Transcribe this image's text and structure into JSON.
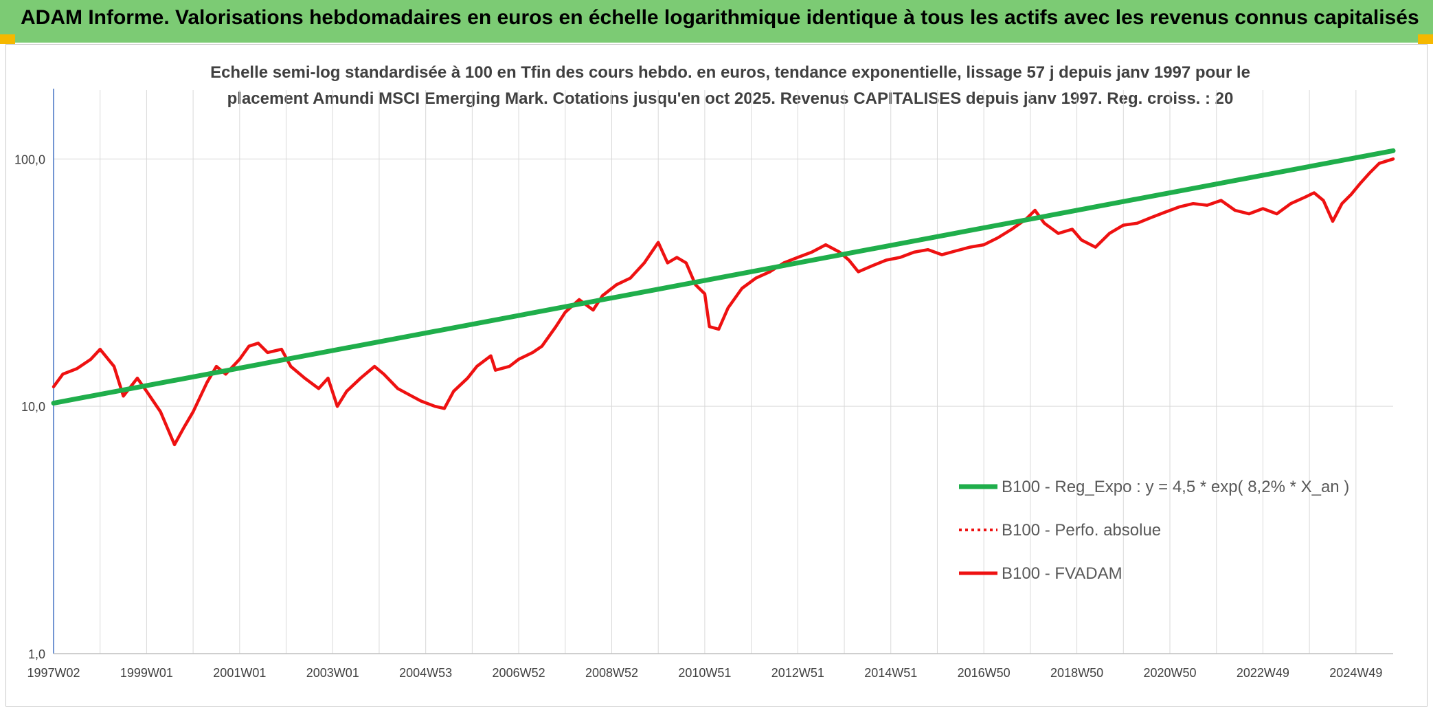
{
  "banner": {
    "title": "ADAM Informe. Valorisations hebdomadaires en euros en échelle logarithmique identique à tous les actifs avec les revenus connus capitalisés"
  },
  "colors": {
    "banner_bg": "#7ccb74",
    "corner_marks": "#f5b800",
    "regression": "#1fae4b",
    "series": "#ee1111",
    "grid": "#d9d9d9",
    "axis": "#4472c4",
    "text": "#404040"
  },
  "chart_data": {
    "type": "line",
    "title_lines": [
      "Echelle semi-log standardisée à 100 en Tfin des cours hebdo. en euros, tendance exponentielle, lissage 57 j depuis janv 1997 pour le",
      "placement Amundi MSCI Emerging Mark. Cotations jusqu'en oct 2025. Revenus CAPITALISES depuis janv 1997. Reg. croiss. : 20"
    ],
    "y_scale": "log",
    "ylim": [
      1,
      190
    ],
    "y_ticks": [
      {
        "value": 1,
        "label": "1,0"
      },
      {
        "value": 10,
        "label": "10,0"
      },
      {
        "value": 100,
        "label": "100,0"
      }
    ],
    "xlim": [
      1997.0,
      2025.8
    ],
    "x_ticks": [
      {
        "value": 1997.0,
        "label": "1997W02"
      },
      {
        "value": 1999.0,
        "label": "1999W01"
      },
      {
        "value": 2001.0,
        "label": "2001W01"
      },
      {
        "value": 2003.0,
        "label": "2003W01"
      },
      {
        "value": 2005.0,
        "label": "2004W53"
      },
      {
        "value": 2007.0,
        "label": "2006W52"
      },
      {
        "value": 2009.0,
        "label": "2008W52"
      },
      {
        "value": 2011.0,
        "label": "2010W51"
      },
      {
        "value": 2013.0,
        "label": "2012W51"
      },
      {
        "value": 2015.0,
        "label": "2014W51"
      },
      {
        "value": 2017.0,
        "label": "2016W50"
      },
      {
        "value": 2019.0,
        "label": "2018W50"
      },
      {
        "value": 2021.0,
        "label": "2020W50"
      },
      {
        "value": 2023.0,
        "label": "2022W49"
      },
      {
        "value": 2025.0,
        "label": "2024W49"
      }
    ],
    "grid": true,
    "legend_position": "lower-right",
    "series": [
      {
        "name": "B100 - Reg_Expo : y = 4,5 * exp( 8,2% *  X_an )",
        "style": "solid-thick",
        "color": "#1fae4b",
        "points": [
          [
            1997.0,
            10.3
          ],
          [
            2025.8,
            108.0
          ]
        ]
      },
      {
        "name": "B100 - Perfo. absolue",
        "style": "dotted",
        "color": "#ee1111",
        "points": []
      },
      {
        "name": "B100 - FVADAM",
        "style": "solid",
        "color": "#ee1111",
        "points": [
          [
            1997.0,
            12.0
          ],
          [
            1997.2,
            13.5
          ],
          [
            1997.5,
            14.2
          ],
          [
            1997.8,
            15.5
          ],
          [
            1998.0,
            17.0
          ],
          [
            1998.3,
            14.5
          ],
          [
            1998.5,
            11.0
          ],
          [
            1998.8,
            13.0
          ],
          [
            1999.0,
            11.5
          ],
          [
            1999.3,
            9.5
          ],
          [
            1999.6,
            7.0
          ],
          [
            1999.8,
            8.2
          ],
          [
            2000.0,
            9.5
          ],
          [
            2000.3,
            12.5
          ],
          [
            2000.5,
            14.5
          ],
          [
            2000.7,
            13.5
          ],
          [
            2001.0,
            15.5
          ],
          [
            2001.2,
            17.5
          ],
          [
            2001.4,
            18.0
          ],
          [
            2001.6,
            16.5
          ],
          [
            2001.9,
            17.0
          ],
          [
            2002.1,
            14.5
          ],
          [
            2002.4,
            13.0
          ],
          [
            2002.7,
            11.8
          ],
          [
            2002.9,
            13.0
          ],
          [
            2003.1,
            10.0
          ],
          [
            2003.3,
            11.5
          ],
          [
            2003.6,
            13.0
          ],
          [
            2003.9,
            14.5
          ],
          [
            2004.1,
            13.5
          ],
          [
            2004.4,
            11.8
          ],
          [
            2004.7,
            11.0
          ],
          [
            2004.9,
            10.5
          ],
          [
            2005.2,
            10.0
          ],
          [
            2005.4,
            9.8
          ],
          [
            2005.6,
            11.5
          ],
          [
            2005.9,
            13.0
          ],
          [
            2006.1,
            14.5
          ],
          [
            2006.4,
            16.0
          ],
          [
            2006.5,
            14.0
          ],
          [
            2006.8,
            14.5
          ],
          [
            2007.0,
            15.5
          ],
          [
            2007.3,
            16.5
          ],
          [
            2007.5,
            17.5
          ],
          [
            2007.8,
            21.0
          ],
          [
            2008.0,
            24.0
          ],
          [
            2008.3,
            27.0
          ],
          [
            2008.6,
            24.5
          ],
          [
            2008.8,
            28.0
          ],
          [
            2009.1,
            31.0
          ],
          [
            2009.4,
            33.0
          ],
          [
            2009.7,
            38.0
          ],
          [
            2010.0,
            46.0
          ],
          [
            2010.2,
            38.0
          ],
          [
            2010.4,
            40.0
          ],
          [
            2010.6,
            38.0
          ],
          [
            2010.8,
            31.0
          ],
          [
            2011.0,
            28.5
          ],
          [
            2011.1,
            21.0
          ],
          [
            2011.3,
            20.5
          ],
          [
            2011.5,
            25.0
          ],
          [
            2011.8,
            30.0
          ],
          [
            2012.1,
            33.0
          ],
          [
            2012.4,
            35.0
          ],
          [
            2012.7,
            38.0
          ],
          [
            2013.0,
            40.0
          ],
          [
            2013.3,
            42.0
          ],
          [
            2013.6,
            45.0
          ],
          [
            2013.9,
            42.0
          ],
          [
            2014.1,
            39.0
          ],
          [
            2014.3,
            35.0
          ],
          [
            2014.6,
            37.0
          ],
          [
            2014.9,
            39.0
          ],
          [
            2015.2,
            40.0
          ],
          [
            2015.5,
            42.0
          ],
          [
            2015.8,
            43.0
          ],
          [
            2016.1,
            41.0
          ],
          [
            2016.4,
            42.5
          ],
          [
            2016.7,
            44.0
          ],
          [
            2017.0,
            45.0
          ],
          [
            2017.3,
            48.0
          ],
          [
            2017.6,
            52.0
          ],
          [
            2017.9,
            57.0
          ],
          [
            2018.1,
            62.0
          ],
          [
            2018.3,
            55.0
          ],
          [
            2018.6,
            50.0
          ],
          [
            2018.9,
            52.0
          ],
          [
            2019.1,
            47.0
          ],
          [
            2019.4,
            44.0
          ],
          [
            2019.7,
            50.0
          ],
          [
            2020.0,
            54.0
          ],
          [
            2020.3,
            55.0
          ],
          [
            2020.6,
            58.0
          ],
          [
            2020.9,
            61.0
          ],
          [
            2021.2,
            64.0
          ],
          [
            2021.5,
            66.0
          ],
          [
            2021.8,
            65.0
          ],
          [
            2022.1,
            68.0
          ],
          [
            2022.4,
            62.0
          ],
          [
            2022.7,
            60.0
          ],
          [
            2023.0,
            63.0
          ],
          [
            2023.3,
            60.0
          ],
          [
            2023.6,
            66.0
          ],
          [
            2023.9,
            70.0
          ],
          [
            2024.1,
            73.0
          ],
          [
            2024.3,
            68.0
          ],
          [
            2024.5,
            56.0
          ],
          [
            2024.7,
            66.0
          ],
          [
            2024.9,
            72.0
          ],
          [
            2025.1,
            80.0
          ],
          [
            2025.3,
            88.0
          ],
          [
            2025.5,
            96.0
          ],
          [
            2025.8,
            100.0
          ]
        ]
      }
    ]
  }
}
